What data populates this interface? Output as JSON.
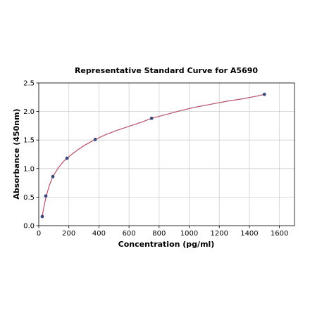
{
  "chart_data": {
    "type": "scatter",
    "title": "Representative Standard Curve for A5690",
    "xlabel": "Concentration (pg/ml)",
    "ylabel": "Absorbance (450nm)",
    "xlim": [
      0,
      1700
    ],
    "ylim": [
      0,
      2.5
    ],
    "xticks": [
      0,
      200,
      400,
      600,
      800,
      1000,
      1200,
      1400,
      1600
    ],
    "yticks": [
      0.0,
      0.5,
      1.0,
      1.5,
      2.0,
      2.5
    ],
    "ytick_labels": [
      "0.0",
      "0.5",
      "1.0",
      "1.5",
      "2.0",
      "2.5"
    ],
    "grid": true,
    "series": [
      {
        "x": [
          23.4,
          46.9,
          93.8,
          187.5,
          375,
          750,
          1500
        ],
        "y": [
          0.16,
          0.52,
          0.86,
          1.18,
          1.51,
          1.88,
          2.3
        ],
        "marker_color": "#3b4a7a"
      }
    ],
    "fit_curve": {
      "color": "#b5506a",
      "x": [
        23.4,
        30,
        40,
        50,
        60,
        70,
        80,
        93.8,
        110,
        130,
        150,
        170,
        187.5,
        220,
        260,
        300,
        340,
        375,
        450,
        520,
        600,
        680,
        750,
        850,
        950,
        1050,
        1150,
        1250,
        1350,
        1450,
        1500
      ],
      "y": [
        0.16,
        0.27,
        0.4,
        0.52,
        0.61,
        0.7,
        0.77,
        0.86,
        0.93,
        1.01,
        1.08,
        1.14,
        1.18,
        1.25,
        1.33,
        1.4,
        1.46,
        1.51,
        1.6,
        1.67,
        1.74,
        1.81,
        1.88,
        1.95,
        2.02,
        2.08,
        2.13,
        2.18,
        2.22,
        2.27,
        2.3
      ]
    }
  }
}
